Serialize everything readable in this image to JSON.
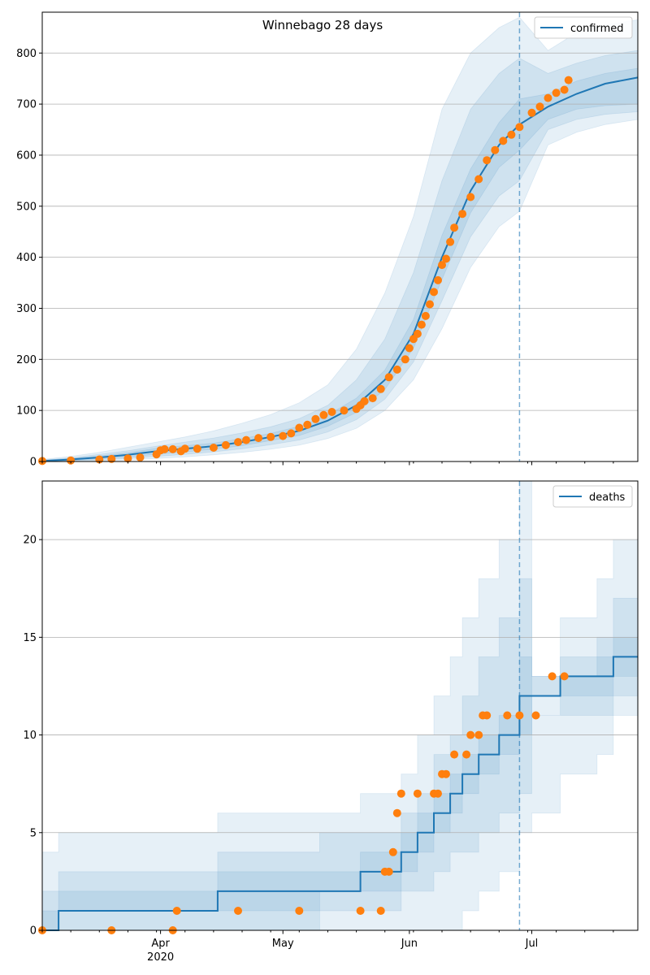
{
  "figure": {
    "title": "Winnebago 28 days"
  },
  "colors": {
    "model_line": "#1f77b4",
    "band": "#1f77b4",
    "observed": "#ff7f0e",
    "grid": "#b0b0b0",
    "forecast_line": "#1f77b4"
  },
  "chart_data": [
    {
      "type": "line",
      "panel": "confirmed",
      "legend": {
        "label": "confirmed",
        "position": "top-right"
      },
      "x_axis": {
        "type": "date",
        "range": [
          "2020-03-03",
          "2020-07-27"
        ],
        "ticks": [
          {
            "date": "2020-04-01",
            "label": "Apr",
            "sublabel": "2020"
          },
          {
            "date": "2020-05-01",
            "label": "May"
          },
          {
            "date": "2020-06-01",
            "label": "Jun"
          },
          {
            "date": "2020-07-01",
            "label": "Jul"
          }
        ]
      },
      "y_axis": {
        "range": [
          0,
          880
        ],
        "ticks": [
          0,
          100,
          200,
          300,
          400,
          500,
          600,
          700,
          800
        ],
        "grid": true
      },
      "forecast_start": "2020-06-28",
      "model": {
        "dates": [
          "2020-03-03",
          "2020-03-10",
          "2020-03-17",
          "2020-03-24",
          "2020-03-31",
          "2020-04-07",
          "2020-04-14",
          "2020-04-21",
          "2020-04-28",
          "2020-05-05",
          "2020-05-12",
          "2020-05-19",
          "2020-05-26",
          "2020-06-02",
          "2020-06-09",
          "2020-06-16",
          "2020-06-23",
          "2020-06-28",
          "2020-07-05",
          "2020-07-12",
          "2020-07-19",
          "2020-07-27"
        ],
        "median": [
          1,
          4,
          8,
          13,
          20,
          25,
          30,
          38,
          48,
          60,
          80,
          110,
          160,
          250,
          400,
          530,
          620,
          660,
          695,
          720,
          740,
          752
        ],
        "bands": [
          {
            "lower": [
              0,
              0,
              1,
              3,
              6,
              9,
              13,
              18,
              24,
              32,
              45,
              65,
              100,
              160,
              260,
              380,
              460,
              490,
              620,
              645,
              660,
              670
            ],
            "upper": [
              4,
              10,
              18,
              28,
              38,
              48,
              60,
              75,
              92,
              115,
              150,
              220,
              330,
              480,
              690,
              800,
              850,
              870,
              805,
              840,
              855,
              865
            ]
          },
          {
            "lower": [
              0,
              1,
              3,
              6,
              10,
              14,
              19,
              25,
              33,
              42,
              58,
              82,
              122,
              195,
              315,
              440,
              520,
              550,
              650,
              670,
              680,
              685
            ],
            "upper": [
              3,
              7,
              14,
              21,
              30,
              38,
              46,
              56,
              68,
              84,
              110,
              160,
              240,
              370,
              550,
              690,
              760,
              790,
              760,
              780,
              795,
              805
            ]
          },
          {
            "lower": [
              0,
              2,
              5,
              9,
              14,
              19,
              24,
              31,
              41,
              51,
              69,
              96,
              141,
              222,
              357,
              487,
              576,
              610,
              670,
              690,
              697,
              700
            ],
            "upper": [
              2,
              6,
              11,
              17,
              26,
              31,
              36,
              45,
              55,
              69,
              91,
              124,
              179,
              278,
              443,
              573,
              664,
              710,
              720,
              745,
              760,
              770
            ]
          }
        ]
      },
      "observed": {
        "dates": [
          "2020-03-03",
          "2020-03-10",
          "2020-03-17",
          "2020-03-20",
          "2020-03-24",
          "2020-03-27",
          "2020-03-31",
          "2020-04-01",
          "2020-04-02",
          "2020-04-04",
          "2020-04-06",
          "2020-04-07",
          "2020-04-10",
          "2020-04-14",
          "2020-04-17",
          "2020-04-20",
          "2020-04-22",
          "2020-04-25",
          "2020-04-28",
          "2020-05-01",
          "2020-05-03",
          "2020-05-05",
          "2020-05-07",
          "2020-05-09",
          "2020-05-11",
          "2020-05-13",
          "2020-05-16",
          "2020-05-19",
          "2020-05-20",
          "2020-05-21",
          "2020-05-23",
          "2020-05-25",
          "2020-05-27",
          "2020-05-29",
          "2020-05-31",
          "2020-06-01",
          "2020-06-02",
          "2020-06-03",
          "2020-06-04",
          "2020-06-05",
          "2020-06-06",
          "2020-06-07",
          "2020-06-08",
          "2020-06-09",
          "2020-06-10",
          "2020-06-11",
          "2020-06-12",
          "2020-06-14",
          "2020-06-16",
          "2020-06-18",
          "2020-06-20",
          "2020-06-22",
          "2020-06-24",
          "2020-06-26",
          "2020-06-28",
          "2020-07-01",
          "2020-07-03",
          "2020-07-05",
          "2020-07-07",
          "2020-07-09",
          "2020-07-10"
        ],
        "values": [
          1,
          2,
          4,
          5,
          6,
          8,
          14,
          22,
          24,
          24,
          20,
          25,
          25,
          27,
          32,
          38,
          42,
          46,
          48,
          50,
          55,
          66,
          72,
          83,
          91,
          97,
          100,
          103,
          110,
          118,
          124,
          142,
          165,
          180,
          200,
          222,
          240,
          250,
          268,
          285,
          308,
          332,
          355,
          385,
          397,
          430,
          458,
          485,
          518,
          553,
          590,
          610,
          628,
          640,
          655,
          683,
          695,
          712,
          722,
          728,
          747
        ]
      }
    },
    {
      "type": "line",
      "panel": "deaths",
      "legend": {
        "label": "deaths",
        "position": "top-right"
      },
      "x_axis": {
        "type": "date",
        "range": [
          "2020-03-03",
          "2020-07-27"
        ],
        "ticks": [
          {
            "date": "2020-04-01",
            "label": "Apr",
            "sublabel": "2020"
          },
          {
            "date": "2020-05-01",
            "label": "May"
          },
          {
            "date": "2020-06-01",
            "label": "Jun"
          },
          {
            "date": "2020-07-01",
            "label": "Jul"
          }
        ]
      },
      "y_axis": {
        "range": [
          0,
          23
        ],
        "ticks": [
          0,
          5,
          10,
          15,
          20
        ],
        "grid": true
      },
      "forecast_start": "2020-06-28",
      "model": {
        "dates": [
          "2020-03-03",
          "2020-03-07",
          "2020-04-15",
          "2020-05-10",
          "2020-05-20",
          "2020-05-30",
          "2020-06-03",
          "2020-06-07",
          "2020-06-11",
          "2020-06-14",
          "2020-06-18",
          "2020-06-23",
          "2020-06-28",
          "2020-07-01",
          "2020-07-08",
          "2020-07-17",
          "2020-07-21",
          "2020-07-27"
        ],
        "median": [
          0,
          1,
          2,
          2,
          3,
          4,
          5,
          6,
          7,
          8,
          9,
          10,
          12,
          12,
          13,
          13,
          14,
          14
        ],
        "bands": [
          {
            "lower": [
              0,
              0,
              0,
              0,
              0,
              0,
              0,
              0,
              0,
              1,
              2,
              3,
              5,
              6,
              8,
              9,
              11,
              11
            ],
            "upper": [
              4,
              5,
              6,
              6,
              7,
              8,
              10,
              12,
              14,
              16,
              18,
              20,
              23,
              13,
              16,
              18,
              20,
              21
            ]
          },
          {
            "lower": [
              0,
              0,
              0,
              1,
              1,
              2,
              2,
              3,
              4,
              4,
              5,
              6,
              7,
              11,
              11,
              11,
              12,
              12
            ],
            "upper": [
              2,
              3,
              4,
              5,
              5,
              6,
              7,
              9,
              10,
              12,
              14,
              16,
              18,
              11,
              13,
              15,
              17,
              18
            ]
          },
          {
            "lower": [
              0,
              1,
              1,
              2,
              2,
              3,
              4,
              5,
              6,
              7,
              8,
              9,
              10,
              12,
              12,
              12,
              13,
              13
            ],
            "upper": [
              1,
              2,
              3,
              3,
              4,
              5,
              6,
              7,
              8,
              9,
              10,
              11,
              14,
              13,
              14,
              14,
              15,
              16
            ]
          }
        ]
      },
      "observed": {
        "dates": [
          "2020-03-03",
          "2020-03-20",
          "2020-04-04",
          "2020-04-05",
          "2020-04-20",
          "2020-05-05",
          "2020-05-20",
          "2020-05-25",
          "2020-05-26",
          "2020-05-27",
          "2020-05-28",
          "2020-05-29",
          "2020-05-30",
          "2020-06-03",
          "2020-06-07",
          "2020-06-08",
          "2020-06-09",
          "2020-06-10",
          "2020-06-12",
          "2020-06-15",
          "2020-06-16",
          "2020-06-18",
          "2020-06-19",
          "2020-06-20",
          "2020-06-25",
          "2020-06-28",
          "2020-07-02",
          "2020-07-06",
          "2020-07-09"
        ],
        "values": [
          0,
          0,
          0,
          1,
          1,
          1,
          1,
          1,
          3,
          3,
          4,
          6,
          7,
          7,
          7,
          7,
          8,
          8,
          9,
          9,
          10,
          10,
          11,
          11,
          11,
          11,
          11,
          13,
          13
        ]
      }
    }
  ]
}
